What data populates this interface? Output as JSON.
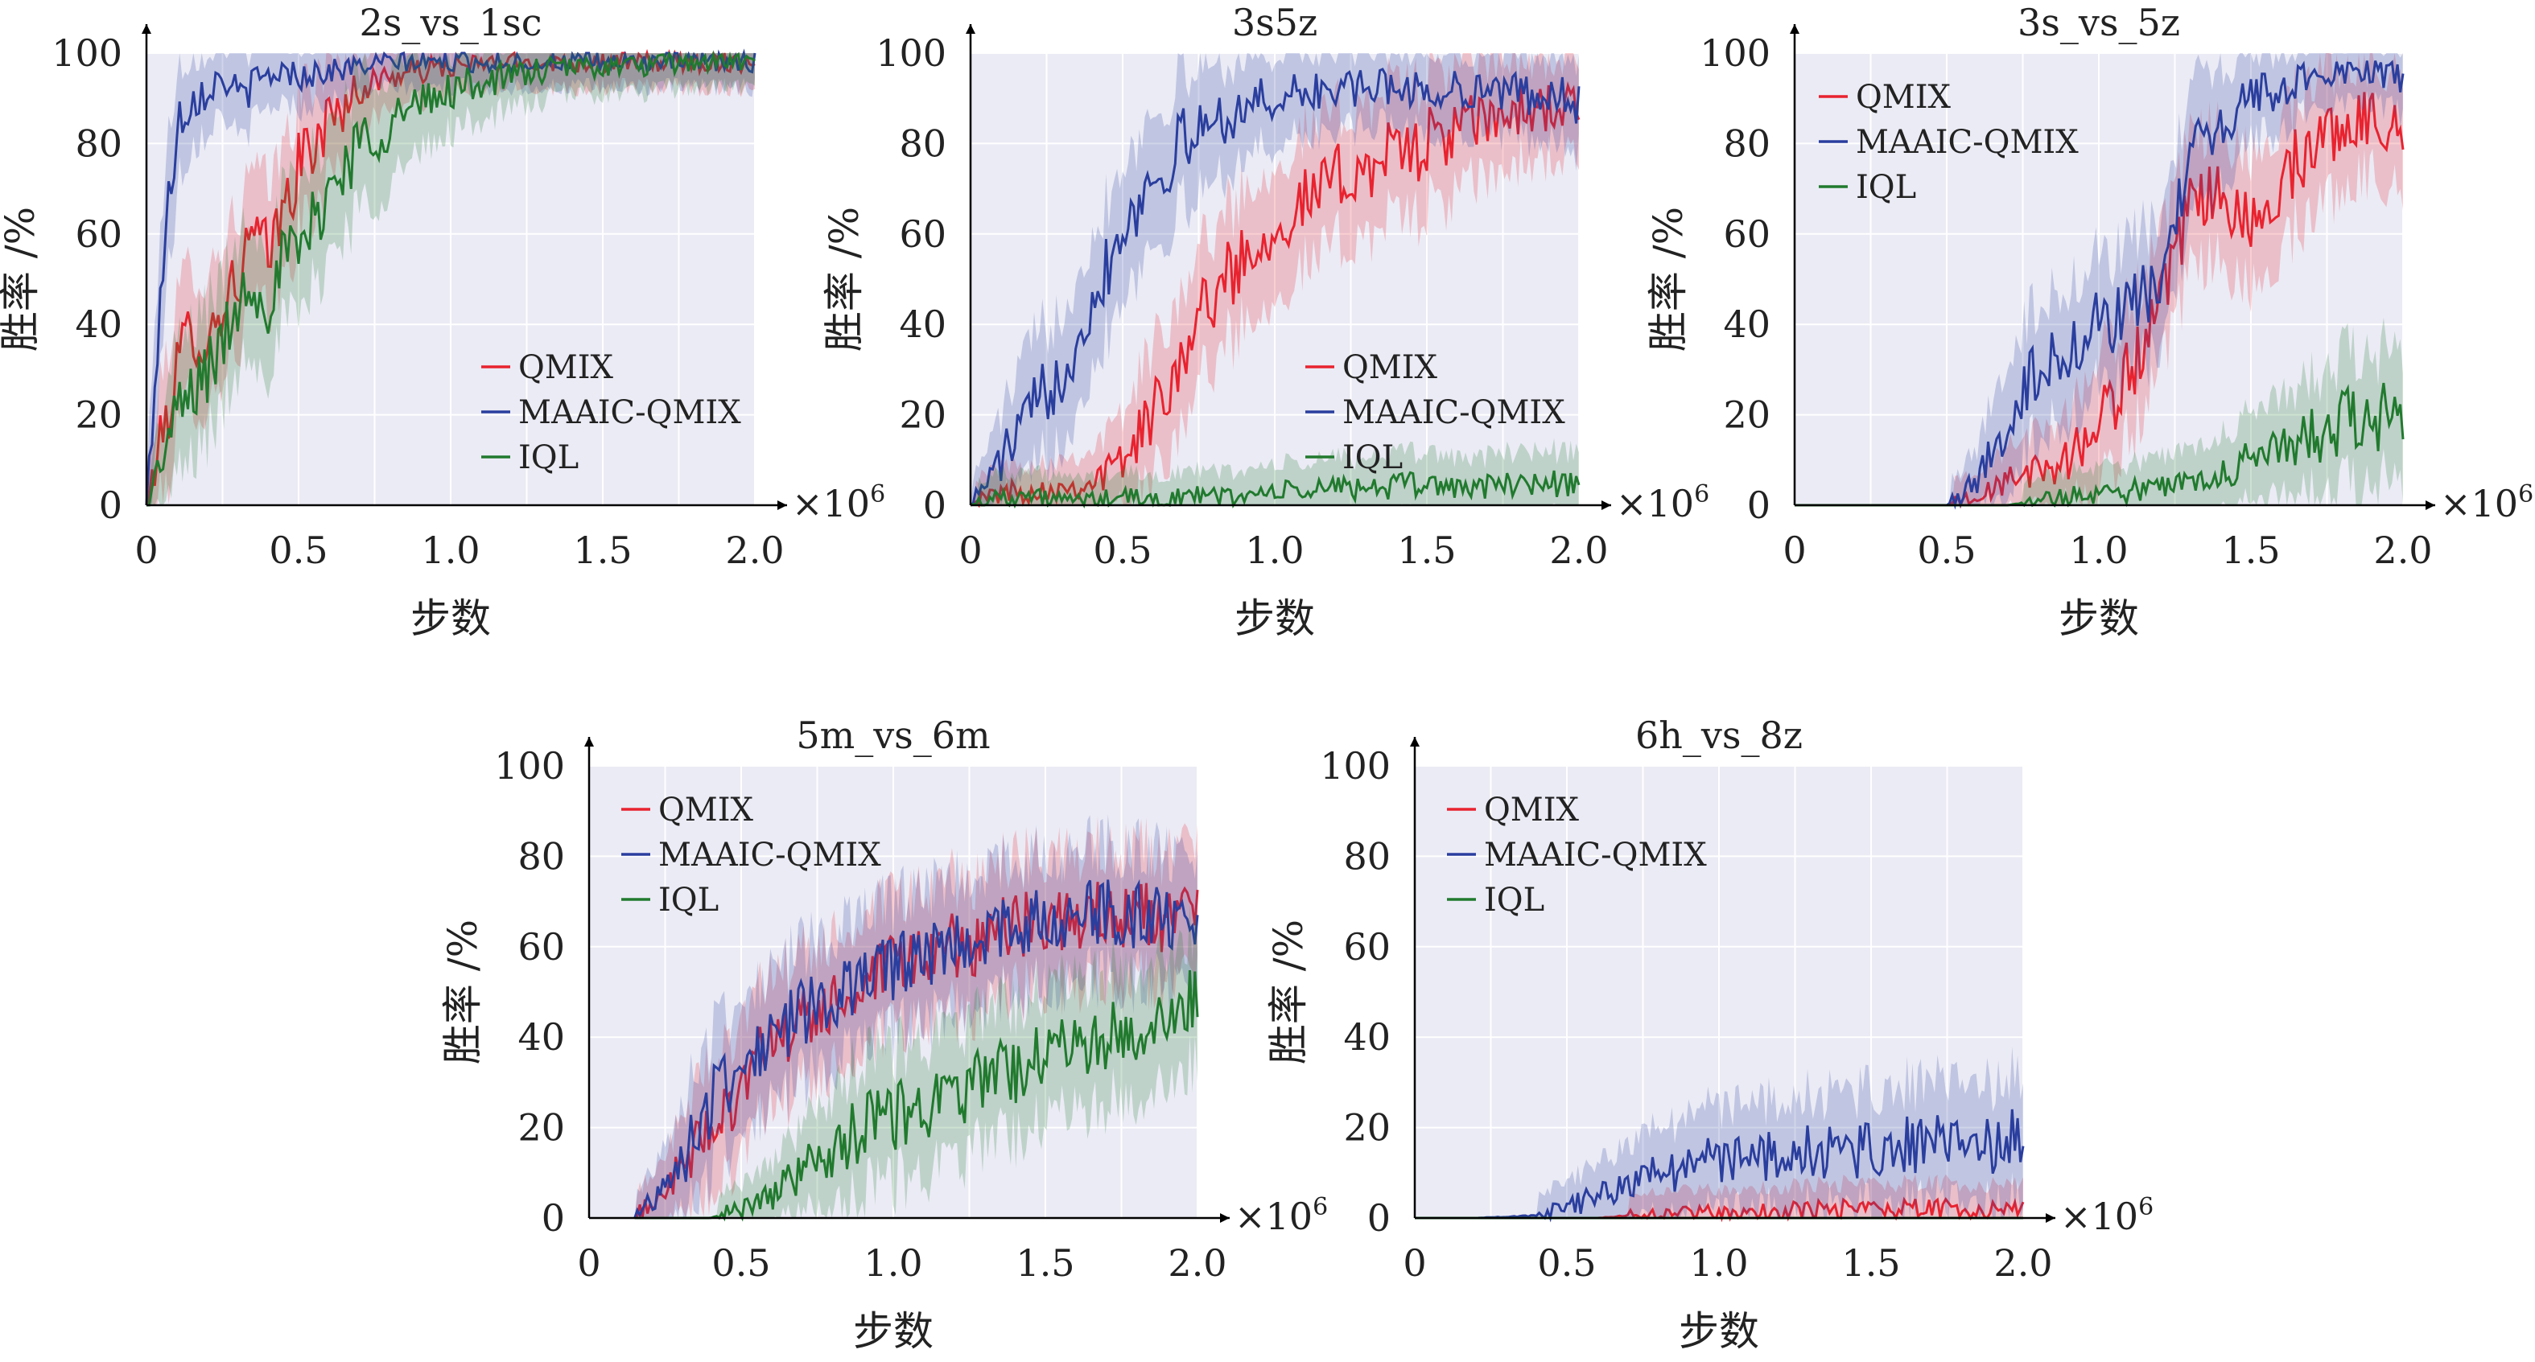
{
  "figure": {
    "x_multiplier": "×10",
    "x_multiplier_exp": "6"
  },
  "chart_data": [
    {
      "type": "line",
      "title": "2s_vs_1sc",
      "xlabel": "步数",
      "ylabel": "胜率 /%",
      "xlim": [
        0,
        2.0
      ],
      "ylim": [
        0,
        100
      ],
      "x_ticks": [
        "0",
        "0.5",
        "1.0",
        "1.5",
        "2.0"
      ],
      "y_ticks": [
        "0",
        "20",
        "40",
        "60",
        "80",
        "100"
      ],
      "grid": true,
      "legend": "lower-right",
      "x": [
        0,
        0.05,
        0.1,
        0.15,
        0.2,
        0.25,
        0.3,
        0.35,
        0.4,
        0.45,
        0.5,
        0.6,
        0.7,
        0.8,
        0.9,
        1.0,
        1.2,
        1.4,
        1.6,
        1.8,
        2.0
      ],
      "series": [
        {
          "name": "QMIX",
          "color": "#e8232f",
          "values": [
            0,
            15,
            30,
            40,
            35,
            45,
            50,
            60,
            55,
            65,
            75,
            85,
            92,
            95,
            96,
            97,
            98,
            98,
            98,
            98,
            98
          ]
        },
        {
          "name": "MAAIC-QMIX",
          "color": "#2a3e9e",
          "values": [
            0,
            50,
            85,
            90,
            92,
            95,
            90,
            93,
            95,
            96,
            95,
            96,
            97,
            98,
            98,
            98,
            98,
            98,
            98,
            98,
            98
          ]
        },
        {
          "name": "IQL",
          "color": "#217a2e",
          "values": [
            0,
            10,
            20,
            25,
            30,
            35,
            45,
            50,
            45,
            55,
            55,
            70,
            80,
            85,
            88,
            92,
            95,
            97,
            97,
            98,
            98
          ]
        }
      ]
    },
    {
      "type": "line",
      "title": "3s5z",
      "xlabel": "步数",
      "ylabel": "胜率 /%",
      "xlim": [
        0,
        2.0
      ],
      "ylim": [
        0,
        100
      ],
      "x_ticks": [
        "0",
        "0.5",
        "1.0",
        "1.5",
        "2.0"
      ],
      "y_ticks": [
        "0",
        "20",
        "40",
        "60",
        "80",
        "100"
      ],
      "grid": true,
      "legend": "lower-right",
      "x": [
        0,
        0.1,
        0.2,
        0.3,
        0.4,
        0.5,
        0.6,
        0.7,
        0.8,
        0.9,
        1.0,
        1.1,
        1.2,
        1.3,
        1.4,
        1.5,
        1.6,
        1.7,
        1.8,
        1.9,
        2.0
      ],
      "series": [
        {
          "name": "QMIX",
          "color": "#e8232f",
          "values": [
            0,
            3,
            3,
            4,
            5,
            10,
            20,
            35,
            47,
            55,
            62,
            67,
            72,
            75,
            78,
            80,
            83,
            85,
            87,
            88,
            88
          ]
        },
        {
          "name": "MAAIC-QMIX",
          "color": "#2a3e9e",
          "values": [
            0,
            10,
            20,
            30,
            45,
            62,
            72,
            80,
            85,
            88,
            90,
            91,
            92,
            92,
            93,
            91,
            92,
            92,
            91,
            91,
            89
          ]
        },
        {
          "name": "IQL",
          "color": "#217a2e",
          "values": [
            0,
            2,
            2,
            1,
            1,
            2,
            1,
            2,
            2,
            2,
            3,
            3,
            4,
            4,
            4,
            5,
            4,
            4,
            5,
            5,
            5
          ]
        }
      ]
    },
    {
      "type": "line",
      "title": "3s_vs_5z",
      "xlabel": "步数",
      "ylabel": "胜率 /%",
      "xlim": [
        0,
        2.0
      ],
      "ylim": [
        0,
        100
      ],
      "x_ticks": [
        "0",
        "0.5",
        "1.0",
        "1.5",
        "2.0"
      ],
      "y_ticks": [
        "0",
        "20",
        "40",
        "60",
        "80",
        "100"
      ],
      "grid": true,
      "legend": "top-left",
      "x": [
        0,
        0.5,
        0.6,
        0.7,
        0.8,
        0.9,
        1.0,
        1.1,
        1.2,
        1.3,
        1.4,
        1.5,
        1.6,
        1.7,
        1.8,
        1.9,
        2.0
      ],
      "series": [
        {
          "name": "QMIX",
          "color": "#e8232f",
          "values": [
            0,
            0,
            2,
            5,
            8,
            10,
            18,
            30,
            42,
            65,
            70,
            60,
            72,
            80,
            84,
            86,
            84
          ]
        },
        {
          "name": "MAAIC-QMIX",
          "color": "#2a3e9e",
          "values": [
            0,
            0,
            5,
            20,
            30,
            35,
            40,
            42,
            50,
            75,
            85,
            90,
            92,
            95,
            96,
            96,
            94
          ]
        },
        {
          "name": "IQL",
          "color": "#217a2e",
          "values": [
            0,
            0,
            0,
            0,
            1,
            2,
            3,
            3,
            4,
            5,
            8,
            10,
            12,
            15,
            18,
            20,
            18
          ]
        }
      ]
    },
    {
      "type": "line",
      "title": "5m_vs_6m",
      "xlabel": "步数",
      "ylabel": "胜率 /%",
      "xlim": [
        0,
        2.0
      ],
      "ylim": [
        0,
        100
      ],
      "x_ticks": [
        "0",
        "0.5",
        "1.0",
        "1.5",
        "2.0"
      ],
      "y_ticks": [
        "0",
        "20",
        "40",
        "60",
        "80",
        "100"
      ],
      "grid": true,
      "legend": "top-left",
      "x": [
        0.15,
        0.3,
        0.4,
        0.5,
        0.6,
        0.7,
        0.8,
        0.9,
        1.0,
        1.1,
        1.2,
        1.3,
        1.4,
        1.5,
        1.6,
        1.7,
        1.8,
        1.9,
        2.0
      ],
      "series": [
        {
          "name": "QMIX",
          "color": "#e8232f",
          "values": [
            0,
            10,
            20,
            30,
            38,
            43,
            47,
            50,
            55,
            58,
            60,
            62,
            64,
            66,
            66,
            67,
            67,
            66,
            65
          ]
        },
        {
          "name": "MAAIC-QMIX",
          "color": "#2a3e9e",
          "values": [
            0,
            12,
            25,
            35,
            40,
            45,
            48,
            52,
            55,
            58,
            61,
            62,
            65,
            66,
            66,
            68,
            67,
            67,
            66
          ]
        },
        {
          "name": "IQL",
          "color": "#217a2e",
          "values": [
            0,
            0,
            0,
            2,
            5,
            10,
            15,
            20,
            22,
            25,
            28,
            30,
            33,
            36,
            38,
            40,
            42,
            46,
            50
          ]
        }
      ]
    },
    {
      "type": "line",
      "title": "6h_vs_8z",
      "xlabel": "步数",
      "ylabel": "胜率 /%",
      "xlim": [
        0,
        2.0
      ],
      "ylim": [
        0,
        100
      ],
      "x_ticks": [
        "0",
        "0.5",
        "1.0",
        "1.5",
        "2.0"
      ],
      "y_ticks": [
        "0",
        "20",
        "40",
        "60",
        "80",
        "100"
      ],
      "grid": true,
      "legend": "top-left",
      "x": [
        0,
        0.2,
        0.4,
        0.5,
        0.6,
        0.7,
        0.8,
        0.9,
        1.0,
        1.2,
        1.4,
        1.6,
        1.8,
        2.0
      ],
      "series": [
        {
          "name": "QMIX",
          "color": "#e8232f",
          "values": [
            0,
            0,
            0,
            0,
            0,
            0.5,
            1,
            1,
            1,
            1.5,
            2,
            2,
            2,
            2
          ]
        },
        {
          "name": "MAAIC-QMIX",
          "color": "#2a3e9e",
          "values": [
            0,
            0,
            0.5,
            2,
            5,
            8,
            10,
            12,
            13,
            14,
            15,
            16,
            16,
            17
          ]
        },
        {
          "name": "IQL",
          "color": "#217a2e",
          "values": [
            0,
            0,
            0,
            0,
            0,
            0,
            0,
            0,
            0,
            0,
            0,
            0,
            0,
            0
          ]
        }
      ]
    }
  ]
}
